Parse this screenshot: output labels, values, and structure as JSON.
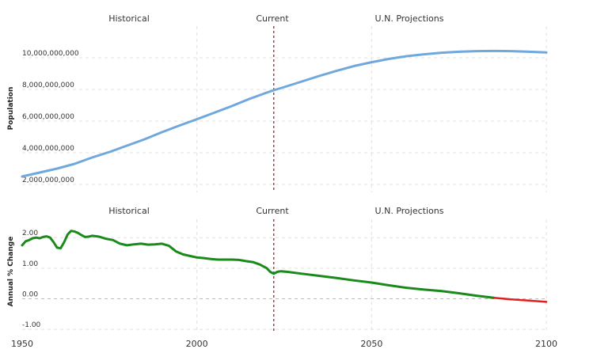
{
  "section_labels": [
    "Historical",
    "Current",
    "U.N. Projections"
  ],
  "colors": {
    "population_line": "#6fa8dc",
    "growth_line": "#1a8a1a",
    "growth_negative": "#e02020",
    "current_marker": "#b71c1c",
    "grid": "#e0e0e0"
  },
  "chart_data": [
    {
      "type": "line",
      "ylabel": "Population",
      "xlim": [
        1950,
        2100
      ],
      "ylim": [
        1500000000,
        12000000000
      ],
      "current_year": 2022,
      "grid": true,
      "yticks": [
        {
          "value": 2000000000,
          "label": "2,000,000,000"
        },
        {
          "value": 4000000000,
          "label": "4,000,000,000"
        },
        {
          "value": 6000000000,
          "label": "6,000,000,000"
        },
        {
          "value": 8000000000,
          "label": "8,000,000,000"
        },
        {
          "value": 10000000000,
          "label": "10,000,000,000"
        }
      ],
      "x": [
        1950,
        1955,
        1960,
        1965,
        1970,
        1975,
        1980,
        1985,
        1990,
        1995,
        2000,
        2005,
        2010,
        2015,
        2020,
        2022,
        2025,
        2030,
        2035,
        2040,
        2045,
        2050,
        2055,
        2060,
        2065,
        2070,
        2075,
        2080,
        2085,
        2090,
        2095,
        2100
      ],
      "values": [
        2500000000,
        2750000000,
        3000000000,
        3300000000,
        3700000000,
        4050000000,
        4450000000,
        4850000000,
        5300000000,
        5720000000,
        6120000000,
        6530000000,
        6950000000,
        7400000000,
        7800000000,
        7950000000,
        8150000000,
        8500000000,
        8850000000,
        9180000000,
        9480000000,
        9720000000,
        9930000000,
        10100000000,
        10220000000,
        10320000000,
        10380000000,
        10420000000,
        10430000000,
        10420000000,
        10380000000,
        10340000000
      ]
    },
    {
      "type": "line",
      "ylabel": "Annual % Change",
      "xlim": [
        1950,
        2100
      ],
      "ylim": [
        -1.1,
        2.6
      ],
      "current_year": 2022,
      "grid": true,
      "yticks": [
        {
          "value": 2,
          "label": "2.00"
        },
        {
          "value": 1,
          "label": "1.00"
        },
        {
          "value": 0,
          "label": "0.00"
        },
        {
          "value": -1,
          "label": "-1.00"
        }
      ],
      "xticks": [
        {
          "value": 1950,
          "label": "1950"
        },
        {
          "value": 2000,
          "label": "2000"
        },
        {
          "value": 2050,
          "label": "2050"
        },
        {
          "value": 2100,
          "label": "2100"
        }
      ],
      "x": [
        1950,
        1951,
        1952,
        1953,
        1954,
        1955,
        1956,
        1957,
        1958,
        1959,
        1960,
        1961,
        1962,
        1963,
        1964,
        1965,
        1966,
        1967,
        1968,
        1969,
        1970,
        1972,
        1974,
        1976,
        1978,
        1980,
        1982,
        1984,
        1986,
        1988,
        1990,
        1992,
        1994,
        1996,
        1998,
        2000,
        2002,
        2004,
        2006,
        2008,
        2010,
        2012,
        2014,
        2016,
        2018,
        2020,
        2021,
        2022,
        2023,
        2024,
        2026,
        2030,
        2035,
        2040,
        2045,
        2050,
        2055,
        2060,
        2065,
        2070,
        2075,
        2080,
        2085,
        2090,
        2095,
        2100
      ],
      "values": [
        1.75,
        1.88,
        1.92,
        1.98,
        2.0,
        1.98,
        2.02,
        2.04,
        2.0,
        1.85,
        1.67,
        1.65,
        1.85,
        2.1,
        2.22,
        2.2,
        2.15,
        2.08,
        2.02,
        2.03,
        2.06,
        2.03,
        1.96,
        1.92,
        1.8,
        1.75,
        1.78,
        1.8,
        1.77,
        1.78,
        1.8,
        1.73,
        1.55,
        1.45,
        1.4,
        1.35,
        1.33,
        1.3,
        1.28,
        1.28,
        1.28,
        1.27,
        1.23,
        1.2,
        1.12,
        1.0,
        0.88,
        0.82,
        0.88,
        0.9,
        0.88,
        0.82,
        0.75,
        0.68,
        0.6,
        0.53,
        0.44,
        0.36,
        0.3,
        0.25,
        0.18,
        0.1,
        0.03,
        -0.02,
        -0.06,
        -0.1
      ]
    }
  ]
}
